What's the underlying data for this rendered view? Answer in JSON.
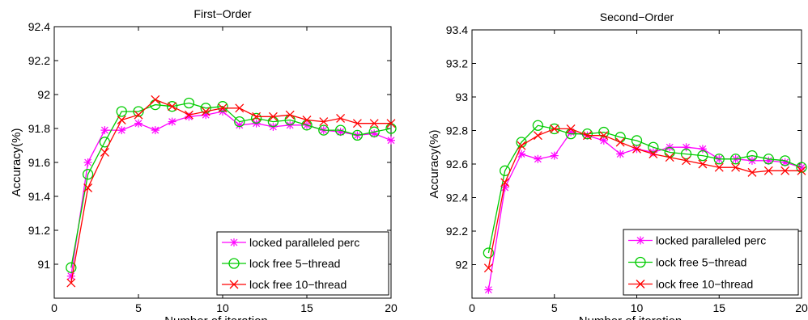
{
  "colors": {
    "locked": "#ff00ff",
    "lock_free_5": "#00cc00",
    "lock_free_10": "#ff0000",
    "axis": "#000000",
    "background": "#ffffff"
  },
  "chart_data": [
    {
      "type": "line",
      "title": "First−Order",
      "xlabel": "Number of iteration",
      "ylabel": "Accuracy(%)",
      "xlim": [
        0,
        20
      ],
      "ylim": [
        90.8,
        92.4
      ],
      "x_ticks": [
        0,
        5,
        10,
        15,
        20
      ],
      "y_ticks": [
        91,
        91.2,
        91.4,
        91.6,
        91.8,
        92,
        92.2,
        92.4
      ],
      "x_tick_labels": [
        "0",
        "5",
        "10",
        "15",
        "20"
      ],
      "y_tick_labels": [
        "91",
        "91.2",
        "91.4",
        "91.6",
        "91.8",
        "92",
        "92.2",
        "92.4"
      ],
      "grid": false,
      "legend_position": "bottom-right",
      "series": [
        {
          "name": "locked paralleled perc",
          "marker": "asterisk",
          "x": [
            1,
            2,
            3,
            4,
            5,
            6,
            7,
            8,
            9,
            10,
            11,
            12,
            13,
            14,
            15,
            16,
            17,
            18,
            19,
            20
          ],
          "y": [
            90.93,
            91.6,
            91.79,
            91.79,
            91.83,
            91.79,
            91.84,
            91.87,
            91.88,
            91.9,
            91.82,
            91.83,
            91.81,
            91.82,
            91.82,
            91.79,
            91.78,
            91.76,
            91.77,
            91.73
          ]
        },
        {
          "name": "lock free 5−thread",
          "marker": "circle",
          "x": [
            1,
            2,
            3,
            4,
            5,
            6,
            7,
            8,
            9,
            10,
            11,
            12,
            13,
            14,
            15,
            16,
            17,
            18,
            19,
            20
          ],
          "y": [
            90.98,
            91.53,
            91.72,
            91.9,
            91.9,
            91.94,
            91.93,
            91.95,
            91.92,
            91.93,
            91.84,
            91.86,
            91.84,
            91.85,
            91.82,
            91.79,
            91.79,
            91.76,
            91.78,
            91.8
          ]
        },
        {
          "name": "lock free 10−thread",
          "marker": "x",
          "x": [
            1,
            2,
            3,
            4,
            5,
            6,
            7,
            8,
            9,
            10,
            11,
            12,
            13,
            14,
            15,
            16,
            17,
            18,
            19,
            20
          ],
          "y": [
            90.89,
            91.45,
            91.66,
            91.85,
            91.88,
            91.97,
            91.93,
            91.88,
            91.9,
            91.92,
            91.92,
            91.87,
            91.87,
            91.88,
            91.85,
            91.84,
            91.86,
            91.83,
            91.83,
            91.83
          ]
        }
      ]
    },
    {
      "type": "line",
      "title": "Second−Order",
      "xlabel": "Number of iteration",
      "ylabel": "Accuracy(%)",
      "xlim": [
        0,
        20
      ],
      "ylim": [
        91.8,
        93.4
      ],
      "x_ticks": [
        0,
        5,
        10,
        15,
        20
      ],
      "y_ticks": [
        92,
        92.2,
        92.4,
        92.6,
        92.8,
        93,
        93.2,
        93.4
      ],
      "x_tick_labels": [
        "0",
        "5",
        "10",
        "15",
        "20"
      ],
      "y_tick_labels": [
        "92",
        "92.2",
        "92.4",
        "92.6",
        "92.8",
        "93",
        "93.2",
        "93.4"
      ],
      "grid": false,
      "legend_position": "bottom-right",
      "series": [
        {
          "name": "locked paralleled perc",
          "marker": "asterisk",
          "x": [
            1,
            2,
            3,
            4,
            5,
            6,
            7,
            8,
            9,
            10,
            11,
            12,
            13,
            14,
            15,
            16,
            17,
            18,
            19,
            20
          ],
          "y": [
            91.85,
            92.46,
            92.66,
            92.63,
            92.65,
            92.79,
            92.77,
            92.74,
            92.66,
            92.69,
            92.67,
            92.7,
            92.7,
            92.69,
            92.63,
            92.63,
            92.62,
            92.62,
            92.61,
            92.58
          ]
        },
        {
          "name": "lock free 5−thread",
          "marker": "circle",
          "x": [
            1,
            2,
            3,
            4,
            5,
            6,
            7,
            8,
            9,
            10,
            11,
            12,
            13,
            14,
            15,
            16,
            17,
            18,
            19,
            20
          ],
          "y": [
            92.07,
            92.56,
            92.73,
            92.83,
            92.81,
            92.78,
            92.78,
            92.79,
            92.76,
            92.74,
            92.7,
            92.67,
            92.66,
            92.65,
            92.63,
            92.63,
            92.65,
            92.63,
            92.62,
            92.58
          ]
        },
        {
          "name": "lock free 10−thread",
          "marker": "x",
          "x": [
            1,
            2,
            3,
            4,
            5,
            6,
            7,
            8,
            9,
            10,
            11,
            12,
            13,
            14,
            15,
            16,
            17,
            18,
            19,
            20
          ],
          "y": [
            91.98,
            92.49,
            92.71,
            92.77,
            92.81,
            92.81,
            92.77,
            92.77,
            92.73,
            92.69,
            92.66,
            92.64,
            92.62,
            92.6,
            92.58,
            92.58,
            92.55,
            92.56,
            92.56,
            92.56
          ]
        }
      ]
    }
  ]
}
